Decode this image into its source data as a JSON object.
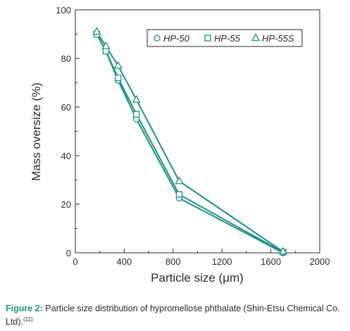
{
  "chart_data": {
    "type": "line",
    "xlabel": "Particle size (μm)",
    "ylabel": "Mass oversize (%)",
    "xlim": [
      0,
      2000
    ],
    "ylim": [
      0,
      100
    ],
    "xticks": [
      0,
      400,
      800,
      1200,
      1600,
      2000
    ],
    "yticks": [
      0,
      20,
      40,
      60,
      80,
      100
    ],
    "x_tick_labels": [
      "0",
      "400",
      "800",
      "1200",
      "1600",
      "2000"
    ],
    "y_tick_labels": [
      "0",
      "20",
      "40",
      "60",
      "80",
      "100"
    ],
    "grid": false,
    "legend_position": "top-right",
    "line_color": "#1e8f86",
    "series": [
      {
        "name": "HP-50",
        "marker": "circle",
        "x": [
          175,
          250,
          350,
          500,
          850,
          1700
        ],
        "y": [
          90,
          83,
          71,
          55,
          22.5,
          0
        ]
      },
      {
        "name": "HP-55",
        "marker": "square",
        "x": [
          175,
          250,
          350,
          500,
          850,
          1700
        ],
        "y": [
          90,
          83,
          72,
          57,
          24,
          0.3
        ]
      },
      {
        "name": "HP-55S",
        "marker": "triangle",
        "x": [
          175,
          250,
          350,
          500,
          850,
          1700
        ],
        "y": [
          91,
          85,
          77,
          63,
          29.5,
          0.5
        ]
      }
    ]
  },
  "caption": {
    "label": "Figure 2:",
    "text": "Particle size distribution of hypromellose phthalate (Shin-Etsu Chemical Co. Ltd).",
    "ref": "(11)"
  }
}
